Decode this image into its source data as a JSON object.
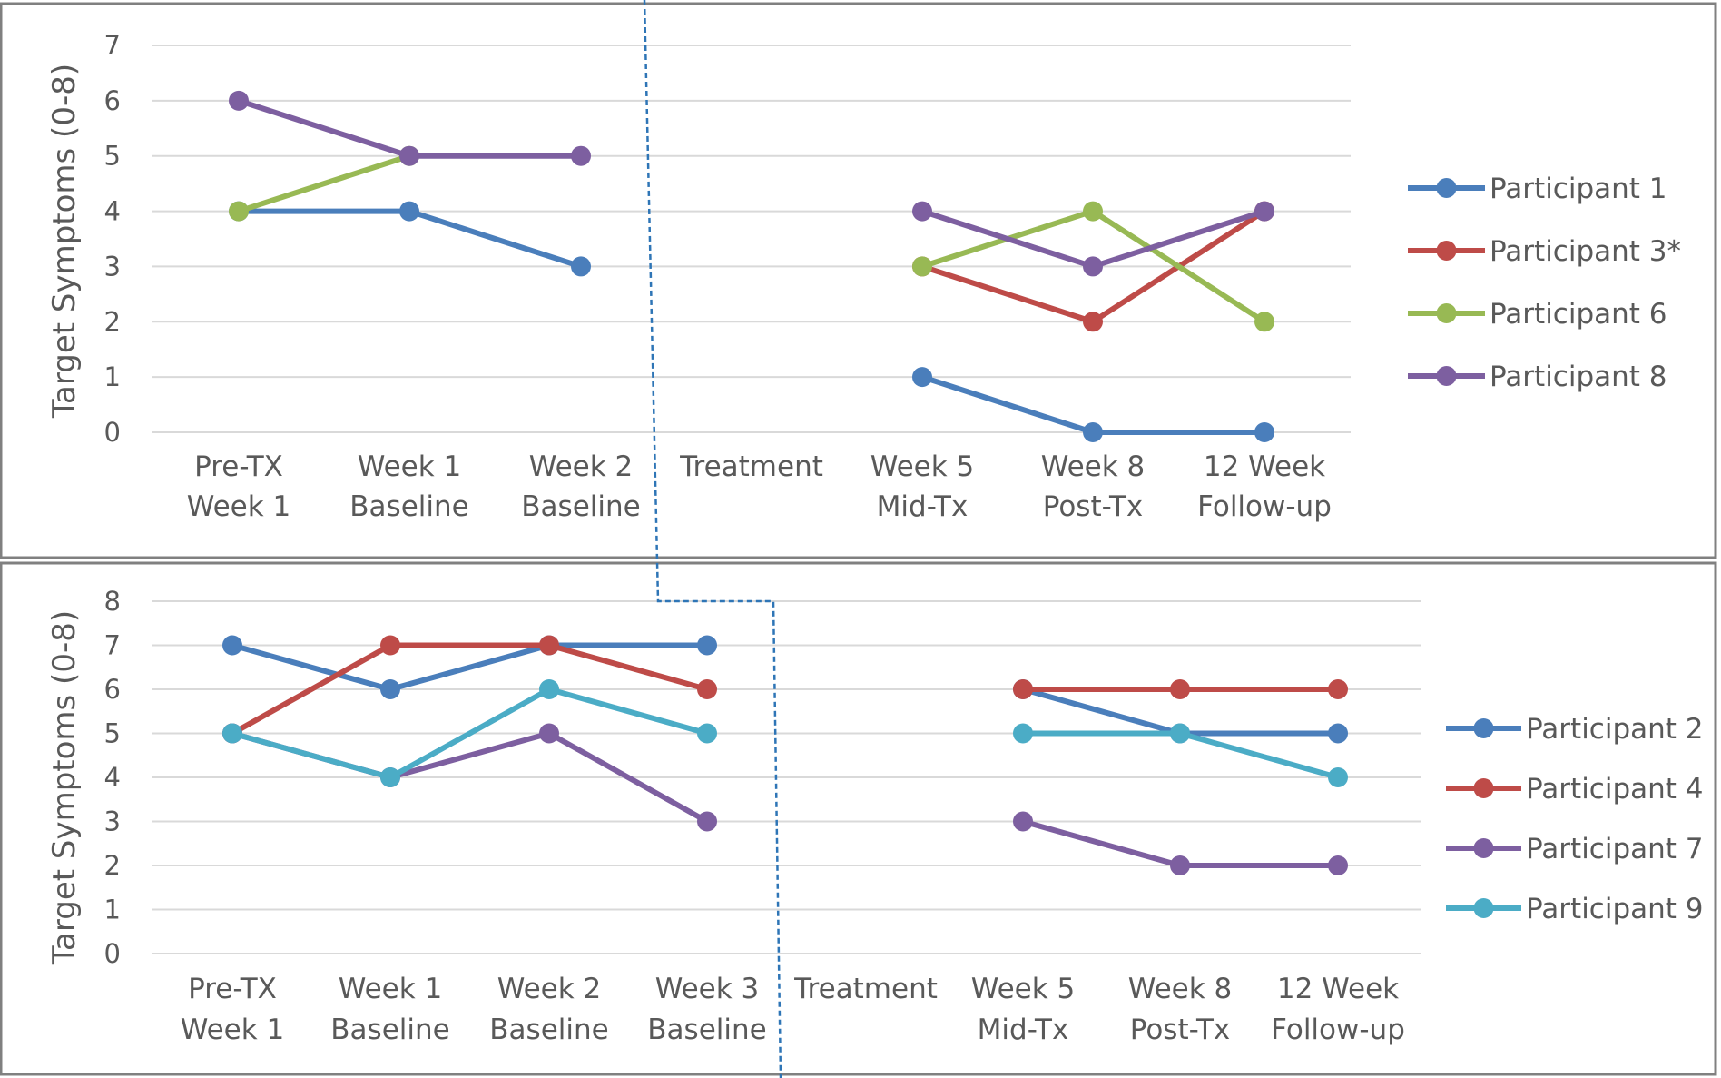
{
  "chart_data": [
    {
      "type": "line",
      "ylabel": "Target Symptoms (0-8)",
      "ylim": [
        0,
        7
      ],
      "yticks": [
        0,
        1,
        2,
        3,
        4,
        5,
        6,
        7
      ],
      "grid": true,
      "legend_position": "right",
      "categories": [
        [
          "Pre-TX",
          "Week 1"
        ],
        [
          "Week 1",
          "Baseline"
        ],
        [
          "Week 2",
          "Baseline"
        ],
        [
          "Treatment"
        ],
        [
          "Week 5",
          "Mid-Tx"
        ],
        [
          "Week 8",
          "Post-Tx"
        ],
        [
          "12 Week",
          "Follow-up"
        ]
      ],
      "series": [
        {
          "name": "Participant 1",
          "color": "#4A7EBB",
          "values": [
            4,
            4,
            3,
            null,
            1,
            0,
            0
          ]
        },
        {
          "name": "Participant 3*",
          "color": "#BE4B48",
          "values": [
            null,
            null,
            null,
            null,
            3,
            2,
            4
          ]
        },
        {
          "name": "Participant 6",
          "color": "#98B954",
          "values": [
            4,
            5,
            null,
            null,
            3,
            4,
            2
          ]
        },
        {
          "name": "Participant 8",
          "color": "#7D5FA0",
          "values": [
            6,
            5,
            5,
            null,
            4,
            3,
            4
          ]
        }
      ]
    },
    {
      "type": "line",
      "ylabel": "Target Symptoms (0-8)",
      "ylim": [
        0,
        8
      ],
      "yticks": [
        0,
        1,
        2,
        3,
        4,
        5,
        6,
        7,
        8
      ],
      "grid": true,
      "legend_position": "right",
      "categories": [
        [
          "Pre-TX",
          "Week 1"
        ],
        [
          "Week 1",
          "Baseline"
        ],
        [
          "Week 2",
          "Baseline"
        ],
        [
          "Week 3",
          "Baseline"
        ],
        [
          "Treatment"
        ],
        [
          "Week 5",
          "Mid-Tx"
        ],
        [
          "Week 8",
          "Post-Tx"
        ],
        [
          "12 Week",
          "Follow-up"
        ]
      ],
      "series": [
        {
          "name": "Participant 2",
          "color": "#4A7EBB",
          "values": [
            7,
            6,
            7,
            7,
            null,
            6,
            5,
            5
          ]
        },
        {
          "name": "Participant 4",
          "color": "#BE4B48",
          "values": [
            5,
            7,
            7,
            6,
            null,
            6,
            6,
            6
          ]
        },
        {
          "name": "Participant 7",
          "color": "#7D5FA0",
          "values": [
            5,
            4,
            5,
            3,
            null,
            3,
            2,
            2
          ]
        },
        {
          "name": "Participant 9",
          "color": "#4BACC6",
          "values": [
            5,
            4,
            6,
            5,
            null,
            5,
            5,
            4
          ]
        }
      ]
    }
  ]
}
